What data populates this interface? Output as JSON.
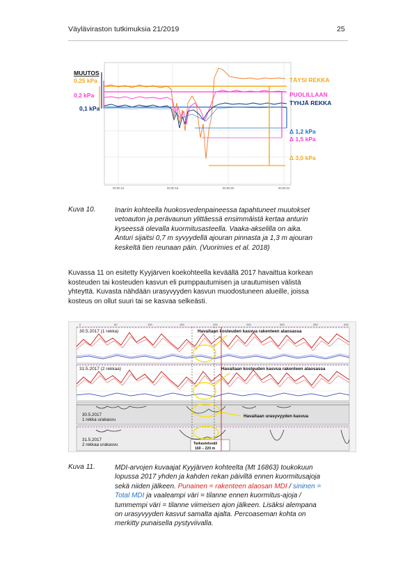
{
  "header": {
    "title": "Väyläviraston tutkimuksia 21/2019",
    "page_number": "25"
  },
  "figure10": {
    "y_labels": {
      "muutos": "MUUTOS",
      "kpa_025": "0,25 kPa",
      "kpa_02": "0,2 kPa",
      "kpa_01": "0,1 kPa"
    },
    "series_labels": {
      "full": "TÄYSI REKKA",
      "half": "PUOLILLAAN",
      "empty": "TYHJÄ REKKA"
    },
    "deltas": {
      "d12": "Δ 1,2 kPa",
      "d15": "Δ 1,5 kPa",
      "d30": "Δ 3,0 kPa"
    },
    "x_ticks": [
      "00:00:10",
      "00:00:15",
      "00:00:20",
      "00:00:22"
    ],
    "colors": {
      "full": "#f4a81c",
      "half": "#ff3bd0",
      "empty": "#0d2f7a",
      "orange": "#f47a20",
      "delta_blue": "#1f6fc2"
    }
  },
  "caption10": {
    "number": "Kuva 10.",
    "lines": [
      "Inarin kohteella huokosvedenpaineessa tapahtuneet muutokset",
      "vetoauton ja perävaunun ylittäessä ensimmäistä kertaa anturin",
      "kyseessä olevalla kuormitusasteella. Vaaka-akselilla on aika.",
      "Anturi sijaitsi 0,7 m syvyydellä ajouran pinnasta ja 1,3 m ajouran",
      "keskeltä tien reunaan päin. (Vuorimies et al. 2018)"
    ]
  },
  "paragraph": {
    "lines": [
      "Kuvassa 11 on esitetty Kyyjärven koekohteella keväällä 2017 havaittua korkean",
      "kosteuden tai kosteuden kasvun eli pumppautumisen ja urautumisen välistä",
      "yhteyttä. Kuvasta nähdään urasyvyyden kasvun muodostuneen alueille, joissa",
      "kosteus on ollut suuri tai se kasvaa selkeästi."
    ]
  },
  "figure11": {
    "panel1_label": "30.5.2017 (1 rekka)",
    "panel2_label": "31.5.2017 (2 rekkaa)",
    "panel3_label_a": "30.5.2017",
    "panel3_label_b": "1 rekka urakasvu",
    "panel4_label_a": "31.5.2017",
    "panel4_label_b": "2 rekkaa urakasvu",
    "annotation1": "Havaitaan kosteuden kasvua rakenteen alaosassa",
    "annotation2": "Havaitaan kosteuden kasvua rakenteen alaosassa",
    "annotation3": "Havaitaan urasyvyyden kasvua",
    "box_a": "Tarkasteluväli",
    "box_b": "160 – 220 m",
    "top_ticks": [
      "0",
      "60",
      "100",
      "150",
      "200",
      "250",
      "300",
      "350",
      "400"
    ],
    "colors": {
      "red": "#d42020",
      "blue": "#2233aa",
      "yellow": "#f2e21a",
      "magenta": "#c040c0"
    }
  },
  "caption11": {
    "number": "Kuva 11.",
    "line1": "MDI-arvojen kuvaajat Kyyjärven kohteelta (Mt 16863) toukokuun",
    "line2": "lopussa 2017 yhden ja kahden rekan päiviltä ennen kuormitusajoja",
    "line3_a": "sekä niiden jälkeen. ",
    "line3_red": "Punainen = rakenteen alaosan MDI",
    "line3_sep": " / ",
    "line3_blue": "sininen =",
    "line4_blue": "Total MDI",
    "line4_b": " ja vaaleampi väri = tilanne ennen kuormitus-ajoja /",
    "line5": "tummempi väri = tilanne viimeisen ajon jälkeen. Lisäksi alempana",
    "line6": "on urasyvyyden kasvut samalta ajalta. Percoaseman kohta on",
    "line7": "merkitty punaisella pystyviivalla."
  }
}
